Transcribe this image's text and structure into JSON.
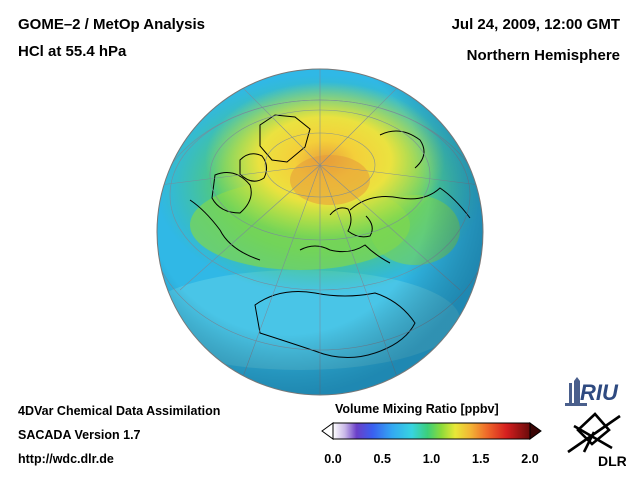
{
  "header": {
    "title_line1": "GOME–2 / MetOp Analysis",
    "title_line2": "HCl at 55.4 hPa",
    "date": "Jul 24, 2009, 12:00 GMT",
    "hemisphere": "Northern Hemisphere"
  },
  "footer": {
    "line1": "4DVar Chemical Data Assimilation",
    "line2": "SACADA Version 1.7",
    "line3": "http://wdc.dlr.de"
  },
  "colorbar": {
    "title": "Volume Mixing Ratio [ppbv]",
    "ticks": [
      "0.0",
      "0.5",
      "1.0",
      "1.5",
      "2.0"
    ],
    "range": [
      0.0,
      2.0
    ]
  },
  "logos": {
    "riu_text": "RIU",
    "dlr_text": "DLR"
  },
  "colors": {
    "background": "#ffffff",
    "coastline": "#000000",
    "gridline": "#7a8a9a",
    "globe_base": "#2fb7e8"
  }
}
